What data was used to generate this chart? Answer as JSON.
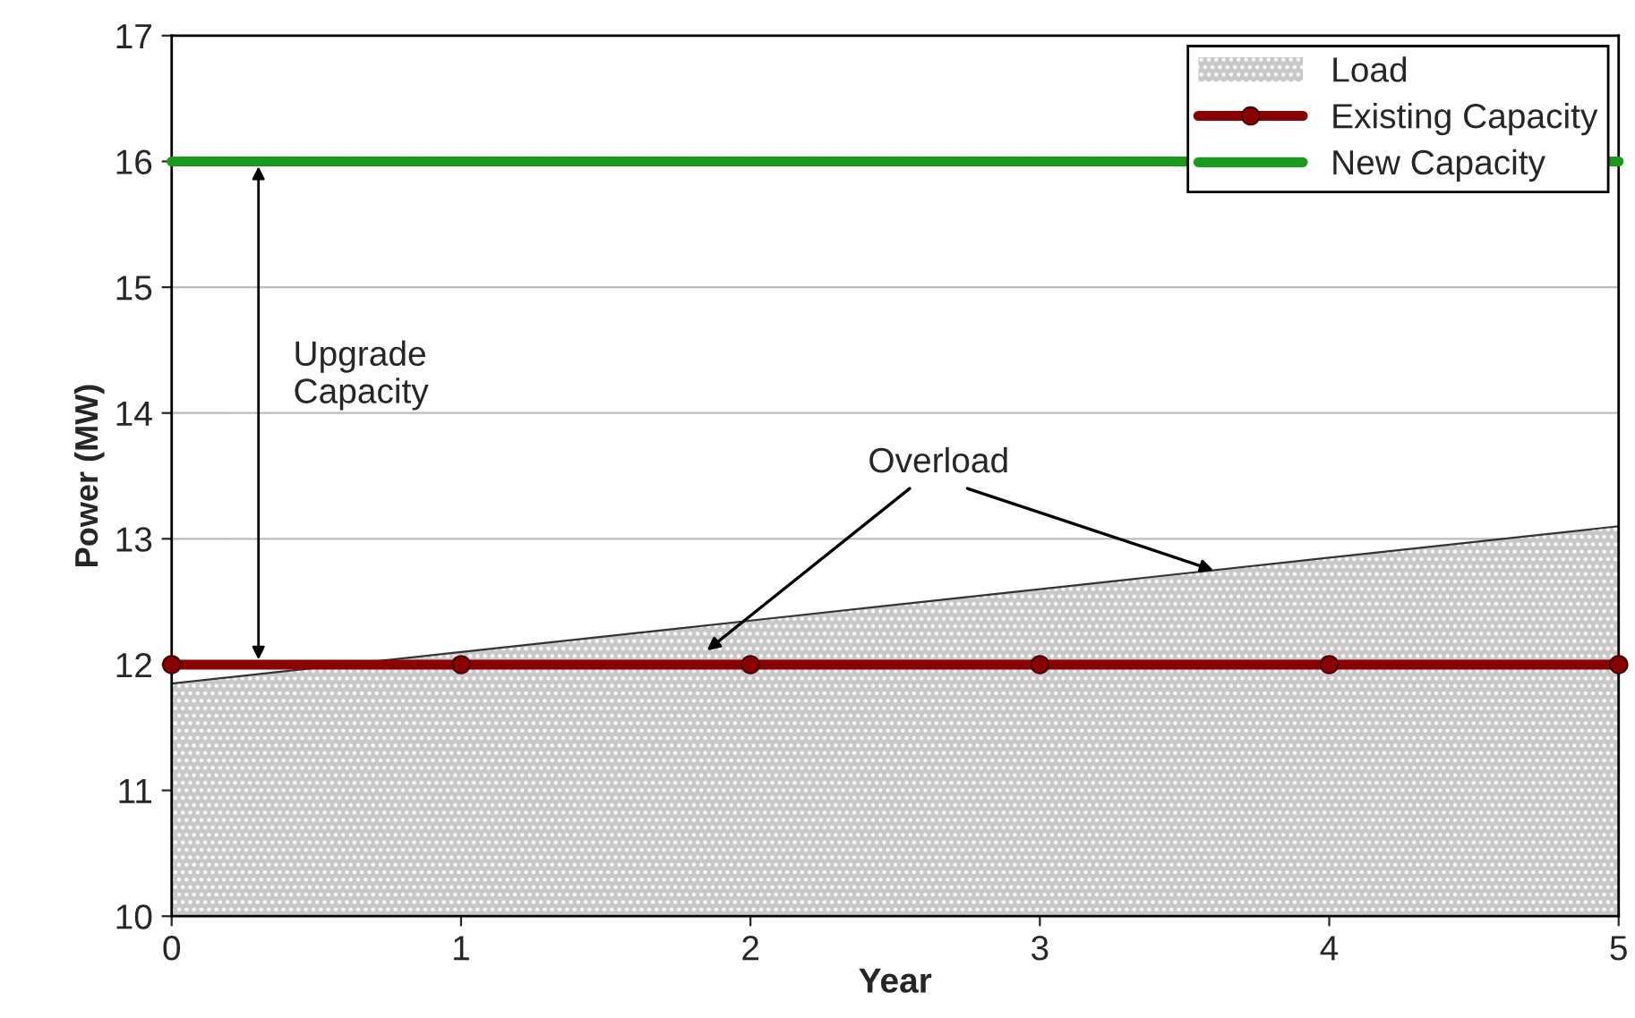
{
  "chart_data": {
    "type": "area",
    "xlabel": "Year",
    "ylabel": "Power (MW)",
    "x": [
      0,
      1,
      2,
      3,
      4,
      5
    ],
    "series": [
      {
        "name": "Load",
        "color": "#c8c8c8",
        "values": [
          11.85,
          12.1,
          12.35,
          12.6,
          12.85,
          13.1
        ]
      },
      {
        "name": "Existing Capacity",
        "type": "line",
        "color": "#8b0000",
        "marker": "circle",
        "values": [
          12,
          12,
          12,
          12,
          12,
          12
        ]
      },
      {
        "name": "New Capacity",
        "type": "line",
        "color": "#1a9a1a",
        "marker": "none",
        "x": [
          0,
          5
        ],
        "values": [
          16,
          16
        ]
      }
    ],
    "annotations": [
      "Upgrade\nCapacity",
      {
        "text": "Overload",
        "x": 3.6,
        "y": 12.75
      }
    ],
    "xlim": [
      0,
      5
    ],
    "xticks": [
      0,
      1,
      2,
      3,
      4,
      5
    ],
    "ylim": [
      10,
      17
    ],
    "yticks": [
      10,
      11,
      12,
      13,
      14,
      15,
      16,
      17
    ],
    "grid": "y",
    "legend": "top right"
  }
}
